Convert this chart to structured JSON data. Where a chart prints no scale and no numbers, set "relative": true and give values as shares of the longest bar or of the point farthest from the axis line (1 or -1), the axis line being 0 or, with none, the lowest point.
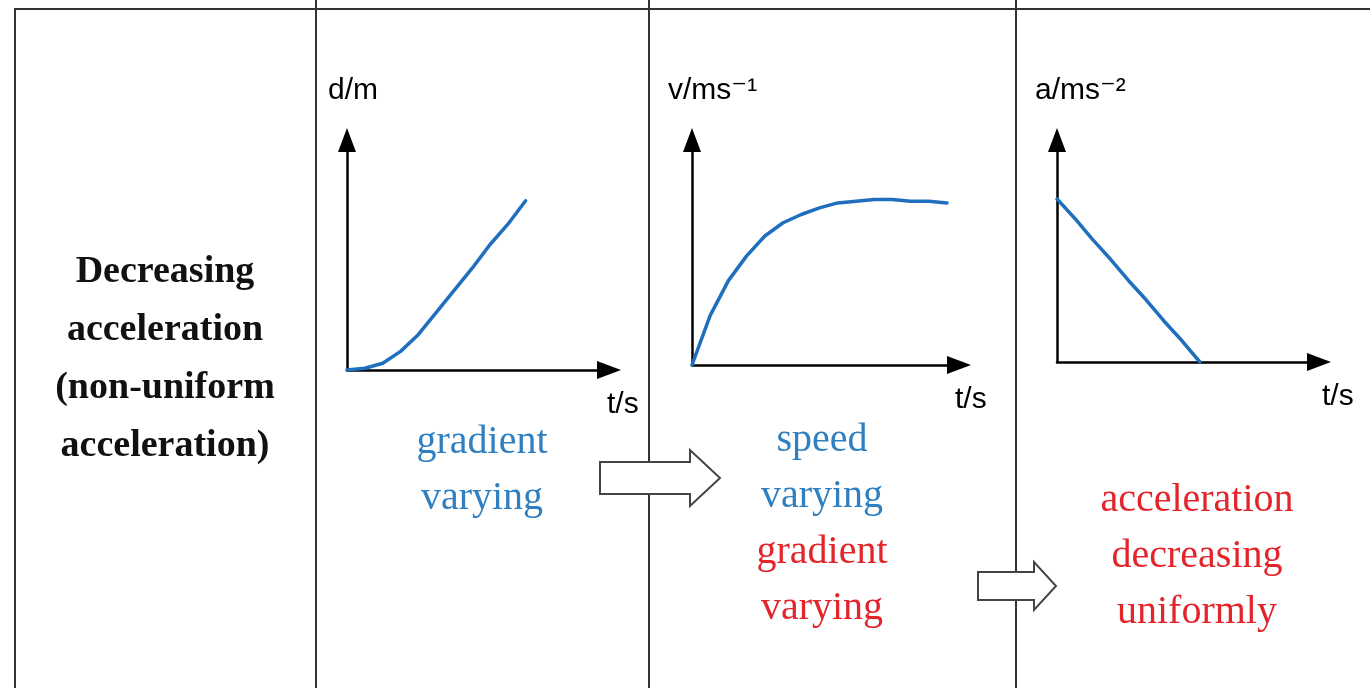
{
  "chart_data": [
    {
      "type": "line",
      "relative": true,
      "title": "Decreasing acceleration (non-uniform acceleration)",
      "ylabel": "d/m",
      "xlabel": "t/s",
      "categories": [
        null,
        null,
        null,
        null,
        null,
        null,
        null,
        null,
        null,
        null,
        null,
        null,
        null,
        null,
        null
      ],
      "series": [
        {
          "color": "#1f6fbf",
          "values": [
            0,
            0.01,
            0.04,
            0.11,
            0.21,
            0.34,
            0.47,
            0.6,
            0.74,
            0.86,
            1,
            null,
            null,
            null,
            null
          ]
        }
      ],
      "annotations": [
        "gradient varying"
      ],
      "grid": false
    },
    {
      "type": "line",
      "relative": true,
      "ylabel": "v/ms⁻¹",
      "xlabel": "t/s",
      "categories": [
        null,
        null,
        null,
        null,
        null,
        null,
        null,
        null,
        null,
        null,
        null,
        null,
        null,
        null,
        null
      ],
      "series": [
        {
          "color": "#1f6fbf",
          "values": [
            0,
            0.3,
            0.51,
            0.66,
            0.78,
            0.86,
            0.91,
            0.95,
            0.98,
            0.99,
            1,
            1,
            0.99,
            0.99,
            0.98
          ]
        }
      ],
      "annotations": [
        "speed varying",
        "gradient varying"
      ],
      "grid": false
    },
    {
      "type": "line",
      "relative": true,
      "ylabel": "a/ms⁻²",
      "xlabel": "t/s",
      "categories": [
        null,
        null,
        null,
        null,
        null,
        null,
        null,
        null,
        null,
        null,
        null,
        null,
        null,
        null,
        null
      ],
      "series": [
        {
          "color": "#1f6fbf",
          "values": [
            1,
            0.88,
            0.75,
            0.63,
            0.5,
            0.38,
            0.25,
            0.13,
            0,
            null,
            null,
            null,
            null,
            null,
            null
          ]
        }
      ],
      "annotations": [
        "acceleration decreasing uniformly"
      ],
      "grid": false
    }
  ]
}
